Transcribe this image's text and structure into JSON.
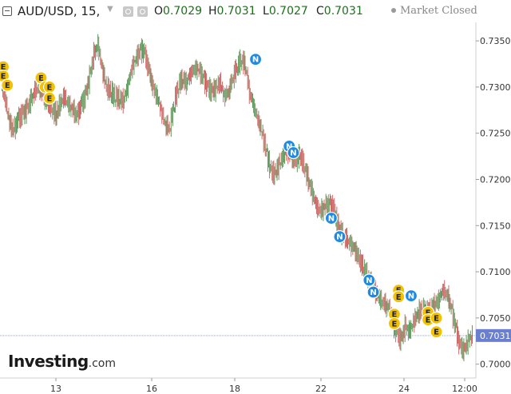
{
  "header": {
    "symbol": "AUD/USD, 15,",
    "open_label": "O",
    "open": "0.7029",
    "high_label": "H",
    "high": "0.7031",
    "low_label": "L",
    "low": "0.7027",
    "close_label": "C",
    "close": "0.7031",
    "status": "Market Closed"
  },
  "logo": {
    "bold": "Investing",
    "suffix": ".com"
  },
  "colors": {
    "up": "#5b9a5b",
    "down": "#d46a6a",
    "last_price": "#6a7fd0",
    "earnings_marker": "#f2c200",
    "news_marker": "#1f8ae0"
  },
  "chart_data": {
    "type": "line",
    "ylim": [
      0.6985,
      0.737
    ],
    "y_ticks": [
      "0.7000",
      "0.7050",
      "0.7100",
      "0.7150",
      "0.7200",
      "0.7250",
      "0.7300",
      "0.7350"
    ],
    "x_ticks": [
      "13",
      "16",
      "18",
      "22",
      "24",
      "12:00"
    ],
    "last_price": "0.7031",
    "series": [
      {
        "values": [
          0.73,
          0.7285,
          0.726,
          0.7252,
          0.7265,
          0.727,
          0.7275,
          0.7285,
          0.7295,
          0.73,
          0.729,
          0.7285,
          0.7278,
          0.727,
          0.7282,
          0.729,
          0.728,
          0.7275,
          0.7268,
          0.728,
          0.729,
          0.731,
          0.7335,
          0.7345,
          0.732,
          0.73,
          0.7295,
          0.729,
          0.7288,
          0.7285,
          0.73,
          0.732,
          0.733,
          0.734,
          0.7338,
          0.732,
          0.73,
          0.729,
          0.7275,
          0.726,
          0.7255,
          0.728,
          0.73,
          0.731,
          0.7305,
          0.7315,
          0.732,
          0.7318,
          0.731,
          0.73,
          0.7295,
          0.7298,
          0.7305,
          0.729,
          0.7295,
          0.731,
          0.7322,
          0.733,
          0.7325,
          0.7295,
          0.728,
          0.7265,
          0.725,
          0.723,
          0.721,
          0.7205,
          0.7215,
          0.7225,
          0.723,
          0.7225,
          0.722,
          0.7228,
          0.7215,
          0.72,
          0.7185,
          0.717,
          0.7165,
          0.717,
          0.7172,
          0.7168,
          0.715,
          0.714,
          0.7135,
          0.713,
          0.7125,
          0.7115,
          0.7105,
          0.7095,
          0.7085,
          0.7078,
          0.707,
          0.7065,
          0.706,
          0.7045,
          0.7035,
          0.7025,
          0.704,
          0.7035,
          0.7045,
          0.7055,
          0.706,
          0.7055,
          0.7058,
          0.7065,
          0.707,
          0.708,
          0.7075,
          0.706,
          0.704,
          0.702,
          0.7015,
          0.7025,
          0.7031
        ]
      }
    ],
    "markers": [
      {
        "type": "E",
        "index": 0,
        "y": 0.7322
      },
      {
        "type": "E",
        "index": 0,
        "y": 0.7312
      },
      {
        "type": "E",
        "index": 1,
        "y": 0.7302
      },
      {
        "type": "E",
        "index": 9,
        "y": 0.731
      },
      {
        "type": "E",
        "index": 10,
        "y": 0.73
      },
      {
        "type": "E",
        "index": 11,
        "y": 0.73
      },
      {
        "type": "E",
        "index": 11,
        "y": 0.7288
      },
      {
        "type": "N",
        "index": 60,
        "y": 0.733
      },
      {
        "type": "N",
        "index": 68,
        "y": 0.7236
      },
      {
        "type": "N",
        "index": 69,
        "y": 0.7229
      },
      {
        "type": "N",
        "index": 78,
        "y": 0.7158
      },
      {
        "type": "N",
        "index": 80,
        "y": 0.7138
      },
      {
        "type": "N",
        "index": 87,
        "y": 0.7091
      },
      {
        "type": "N",
        "index": 88,
        "y": 0.7078
      },
      {
        "type": "E",
        "index": 93,
        "y": 0.7054
      },
      {
        "type": "E",
        "index": 93,
        "y": 0.7044
      },
      {
        "type": "E",
        "index": 94,
        "y": 0.708
      },
      {
        "type": "E",
        "index": 94,
        "y": 0.7073
      },
      {
        "type": "N",
        "index": 97,
        "y": 0.7074
      },
      {
        "type": "E",
        "index": 101,
        "y": 0.7056
      },
      {
        "type": "E",
        "index": 101,
        "y": 0.7048
      },
      {
        "type": "E",
        "index": 103,
        "y": 0.705
      },
      {
        "type": "E",
        "index": 103,
        "y": 0.7035
      }
    ]
  }
}
